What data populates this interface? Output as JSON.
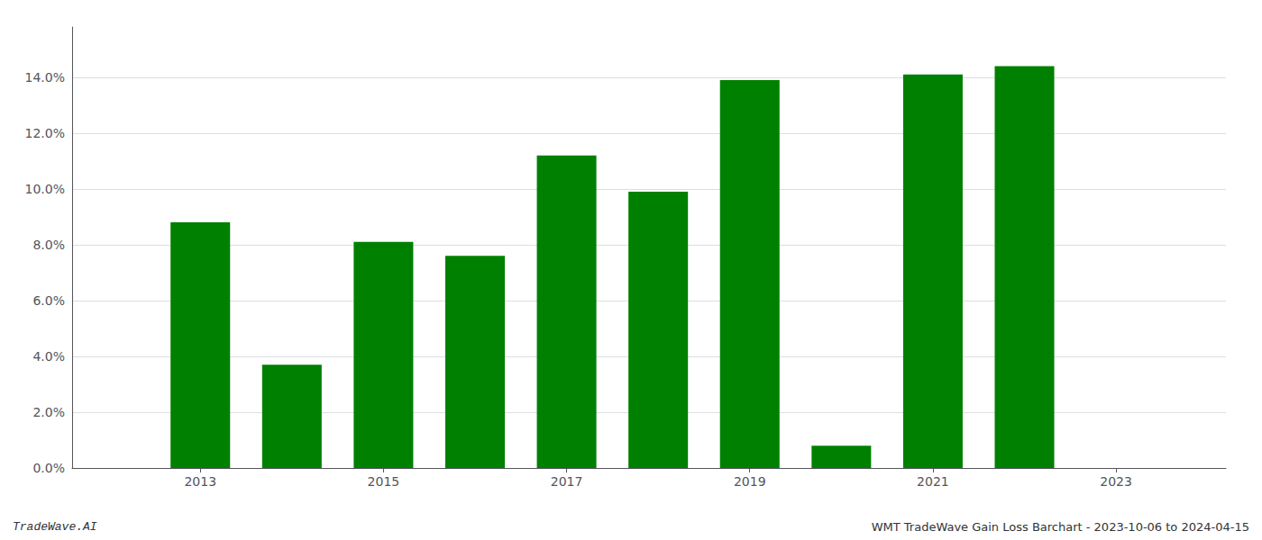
{
  "chart_data": {
    "type": "bar",
    "x": [
      2013,
      2014,
      2015,
      2016,
      2017,
      2018,
      2019,
      2020,
      2021,
      2022
    ],
    "values": [
      0.088,
      0.037,
      0.081,
      0.076,
      0.112,
      0.099,
      0.139,
      0.008,
      0.141,
      0.144
    ],
    "color": "#008000",
    "xlim": [
      2011.6,
      2024.2
    ],
    "xticks": [
      2013,
      2015,
      2017,
      2019,
      2021,
      2023
    ],
    "ylim": [
      0,
      0.158
    ],
    "yticks": [
      {
        "value": 0.0,
        "label": "0.0%"
      },
      {
        "value": 0.02,
        "label": "2.0%"
      },
      {
        "value": 0.04,
        "label": "4.0%"
      },
      {
        "value": 0.06,
        "label": "6.0%"
      },
      {
        "value": 0.08,
        "label": "8.0%"
      },
      {
        "value": 0.1,
        "label": "10.0%"
      },
      {
        "value": 0.12,
        "label": "12.0%"
      },
      {
        "value": 0.14,
        "label": "14.0%"
      }
    ],
    "grid": true,
    "annotations": [
      "TradeWave.AI",
      "WMT TradeWave Gain Loss Barchart - 2023-10-06 to 2024-04-15"
    ]
  }
}
